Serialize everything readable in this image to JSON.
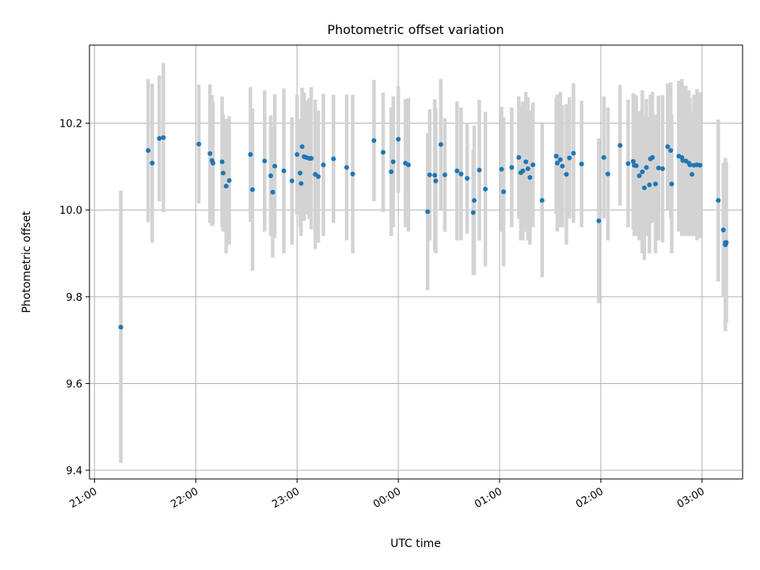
{
  "chart_data": {
    "type": "scatter",
    "title": "Photometric offset variation",
    "xlabel": "UTC time",
    "ylabel": "Photometric offset",
    "xlim": [
      -0.05,
      6.4
    ],
    "ylim": [
      9.38,
      10.38
    ],
    "grid": true,
    "x_unit": "hours since 21:00 UTC",
    "x_ticks": [
      {
        "value": 0,
        "label": "21:00"
      },
      {
        "value": 1,
        "label": "22:00"
      },
      {
        "value": 2,
        "label": "23:00"
      },
      {
        "value": 3,
        "label": "00:00"
      },
      {
        "value": 4,
        "label": "01:00"
      },
      {
        "value": 5,
        "label": "02:00"
      },
      {
        "value": 6,
        "label": "03:00"
      }
    ],
    "y_ticks": [
      {
        "value": 9.4,
        "label": "9.4"
      },
      {
        "value": 9.6,
        "label": "9.6"
      },
      {
        "value": 9.8,
        "label": "9.8"
      },
      {
        "value": 10.0,
        "label": "10.0"
      },
      {
        "value": 10.2,
        "label": "10.2"
      }
    ],
    "marker_color": "#1f77b4",
    "errorbar_color": "#d3d3d3",
    "series": [
      {
        "name": "Photometric offset",
        "x": [
          0.26,
          0.53,
          0.57,
          0.64,
          0.68,
          1.03,
          1.14,
          1.16,
          1.17,
          1.26,
          1.27,
          1.3,
          1.33,
          1.54,
          1.56,
          1.68,
          1.74,
          1.76,
          1.78,
          1.87,
          1.95,
          2.0,
          2.03,
          2.04,
          2.05,
          2.07,
          2.09,
          2.12,
          2.14,
          2.18,
          2.21,
          2.26,
          2.36,
          2.49,
          2.55,
          2.76,
          2.85,
          2.93,
          2.95,
          3.0,
          3.07,
          3.1,
          3.29,
          3.31,
          3.36,
          3.37,
          3.42,
          3.46,
          3.58,
          3.62,
          3.68,
          3.74,
          3.75,
          3.8,
          3.86,
          4.02,
          4.04,
          4.12,
          4.19,
          4.21,
          4.23,
          4.26,
          4.28,
          4.3,
          4.33,
          4.42,
          4.56,
          4.57,
          4.6,
          4.62,
          4.66,
          4.69,
          4.73,
          4.81,
          4.98,
          5.03,
          5.07,
          5.19,
          5.27,
          5.32,
          5.33,
          5.35,
          5.38,
          5.41,
          5.43,
          5.45,
          5.48,
          5.49,
          5.51,
          5.54,
          5.57,
          5.61,
          5.66,
          5.69,
          5.7,
          5.77,
          5.8,
          5.81,
          5.84,
          5.87,
          5.88,
          5.9,
          5.92,
          5.95,
          5.98,
          6.16,
          6.21,
          6.23,
          6.23,
          6.24
        ]
      }
    ],
    "points": [
      [
        0.26,
        9.73,
        9.417,
        10.045
      ],
      [
        0.53,
        10.137,
        9.972,
        10.302
      ],
      [
        0.57,
        10.108,
        9.925,
        10.291
      ],
      [
        0.64,
        10.165,
        10.02,
        10.31
      ],
      [
        0.68,
        10.167,
        9.995,
        10.339
      ],
      [
        1.03,
        10.152,
        10.015,
        10.289
      ],
      [
        1.14,
        10.13,
        9.97,
        10.29
      ],
      [
        1.16,
        10.114,
        9.963,
        10.265
      ],
      [
        1.17,
        10.108,
        9.966,
        10.25
      ],
      [
        1.26,
        10.111,
        9.96,
        10.262
      ],
      [
        1.27,
        10.085,
        9.95,
        10.22
      ],
      [
        1.3,
        10.055,
        9.9,
        10.21
      ],
      [
        1.33,
        10.068,
        9.92,
        10.216
      ],
      [
        1.54,
        10.128,
        9.973,
        10.283
      ],
      [
        1.56,
        10.047,
        9.86,
        10.234
      ],
      [
        1.68,
        10.113,
        9.95,
        10.276
      ],
      [
        1.74,
        10.079,
        9.94,
        10.218
      ],
      [
        1.76,
        10.041,
        9.89,
        10.192
      ],
      [
        1.78,
        10.101,
        9.935,
        10.267
      ],
      [
        1.87,
        10.09,
        9.9,
        10.28
      ],
      [
        1.95,
        10.067,
        9.92,
        10.214
      ],
      [
        2.0,
        10.128,
        9.99,
        10.266
      ],
      [
        2.03,
        10.085,
        9.96,
        10.21
      ],
      [
        2.04,
        10.061,
        9.94,
        10.182
      ],
      [
        2.05,
        10.146,
        10.01,
        10.282
      ],
      [
        2.07,
        10.123,
        9.975,
        10.271
      ],
      [
        2.09,
        10.121,
        9.99,
        10.252
      ],
      [
        2.12,
        10.119,
        9.98,
        10.258
      ],
      [
        2.14,
        10.119,
        9.955,
        10.283
      ],
      [
        2.18,
        10.082,
        9.91,
        10.254
      ],
      [
        2.21,
        10.077,
        9.925,
        10.229
      ],
      [
        2.26,
        10.104,
        9.94,
        10.268
      ],
      [
        2.36,
        10.118,
        9.97,
        10.266
      ],
      [
        2.49,
        10.098,
        9.93,
        10.266
      ],
      [
        2.55,
        10.083,
        9.9,
        10.266
      ],
      [
        2.76,
        10.16,
        10.02,
        10.3
      ],
      [
        2.85,
        10.133,
        9.995,
        10.271
      ],
      [
        2.93,
        10.088,
        9.94,
        10.236
      ],
      [
        2.95,
        10.111,
        9.96,
        10.262
      ],
      [
        3.0,
        10.163,
        10.04,
        10.286
      ],
      [
        3.07,
        10.108,
        9.96,
        10.256
      ],
      [
        3.1,
        10.104,
        9.95,
        10.258
      ],
      [
        3.29,
        9.996,
        9.815,
        10.177
      ],
      [
        3.31,
        10.081,
        9.93,
        10.232
      ],
      [
        3.36,
        10.08,
        9.905,
        10.255
      ],
      [
        3.37,
        10.067,
        9.9,
        10.234
      ],
      [
        3.42,
        10.151,
        10.0,
        10.302
      ],
      [
        3.46,
        10.081,
        9.95,
        10.212
      ],
      [
        3.58,
        10.09,
        9.93,
        10.25
      ],
      [
        3.62,
        10.083,
        9.93,
        10.236
      ],
      [
        3.68,
        10.073,
        9.945,
        10.201
      ],
      [
        3.74,
        9.994,
        9.85,
        10.138
      ],
      [
        3.75,
        10.022,
        9.85,
        10.194
      ],
      [
        3.8,
        10.092,
        9.93,
        10.254
      ],
      [
        3.86,
        10.048,
        9.87,
        10.226
      ],
      [
        4.02,
        10.094,
        9.95,
        10.238
      ],
      [
        4.04,
        10.042,
        9.87,
        10.214
      ],
      [
        4.12,
        10.098,
        9.96,
        10.236
      ],
      [
        4.19,
        10.121,
        9.98,
        10.262
      ],
      [
        4.21,
        10.086,
        9.93,
        10.242
      ],
      [
        4.23,
        10.09,
        9.93,
        10.25
      ],
      [
        4.26,
        10.111,
        9.95,
        10.272
      ],
      [
        4.28,
        10.095,
        9.93,
        10.26
      ],
      [
        4.3,
        10.075,
        9.92,
        10.23
      ],
      [
        4.33,
        10.104,
        9.96,
        10.248
      ],
      [
        4.42,
        10.022,
        9.845,
        10.199
      ],
      [
        4.56,
        10.124,
        9.99,
        10.258
      ],
      [
        4.57,
        10.108,
        9.95,
        10.266
      ],
      [
        4.6,
        10.116,
        9.96,
        10.272
      ],
      [
        4.62,
        10.101,
        9.96,
        10.242
      ],
      [
        4.66,
        10.082,
        9.92,
        10.244
      ],
      [
        4.69,
        10.12,
        9.98,
        10.26
      ],
      [
        4.73,
        10.131,
        9.97,
        10.292
      ],
      [
        4.81,
        10.106,
        9.96,
        10.252
      ],
      [
        4.98,
        9.975,
        9.785,
        10.165
      ],
      [
        5.03,
        10.121,
        9.98,
        10.262
      ],
      [
        5.07,
        10.083,
        9.93,
        10.236
      ],
      [
        5.19,
        10.149,
        10.01,
        10.288
      ],
      [
        5.27,
        10.107,
        9.96,
        10.254
      ],
      [
        5.32,
        10.112,
        9.955,
        10.269
      ],
      [
        5.33,
        10.103,
        9.94,
        10.266
      ],
      [
        5.35,
        10.102,
        9.94,
        10.264
      ],
      [
        5.38,
        10.079,
        9.93,
        10.228
      ],
      [
        5.41,
        10.088,
        9.9,
        10.276
      ],
      [
        5.43,
        10.051,
        9.885,
        10.217
      ],
      [
        5.45,
        10.098,
        9.94,
        10.256
      ],
      [
        5.48,
        10.058,
        9.9,
        10.216
      ],
      [
        5.49,
        10.118,
        9.97,
        10.266
      ],
      [
        5.51,
        10.121,
        9.97,
        10.272
      ],
      [
        5.54,
        10.06,
        9.9,
        10.22
      ],
      [
        5.57,
        10.097,
        9.93,
        10.264
      ],
      [
        5.61,
        10.095,
        9.925,
        10.265
      ],
      [
        5.66,
        10.146,
        10.0,
        10.292
      ],
      [
        5.69,
        10.137,
        9.98,
        10.294
      ],
      [
        5.7,
        10.06,
        9.9,
        10.22
      ],
      [
        5.77,
        10.124,
        9.95,
        10.298
      ],
      [
        5.8,
        10.121,
        9.94,
        10.302
      ],
      [
        5.81,
        10.114,
        9.94,
        10.288
      ],
      [
        5.84,
        10.113,
        9.94,
        10.286
      ],
      [
        5.87,
        10.108,
        9.94,
        10.276
      ],
      [
        5.88,
        10.104,
        9.95,
        10.258
      ],
      [
        5.9,
        10.082,
        9.94,
        10.224
      ],
      [
        5.92,
        10.103,
        9.94,
        10.266
      ],
      [
        5.95,
        10.104,
        9.93,
        10.278
      ],
      [
        5.98,
        10.103,
        9.935,
        10.271
      ],
      [
        6.16,
        10.022,
        9.835,
        10.209
      ],
      [
        6.21,
        9.954,
        9.8,
        10.108
      ],
      [
        6.23,
        9.925,
        9.76,
        10.09
      ],
      [
        6.23,
        9.92,
        9.72,
        10.12
      ],
      [
        6.24,
        9.925,
        9.74,
        10.11
      ]
    ]
  }
}
